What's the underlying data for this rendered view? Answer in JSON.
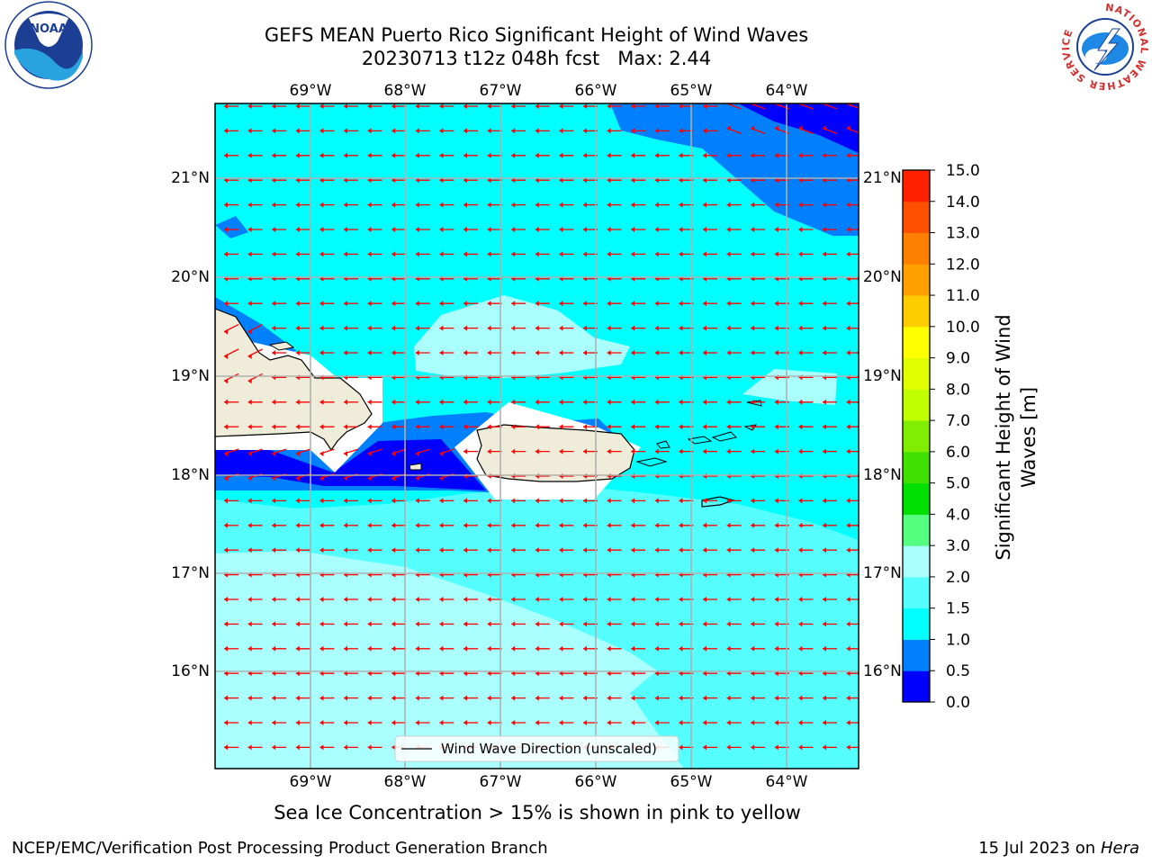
{
  "title": {
    "line1": "GEFS MEAN Puerto Rico Significant Height of Wind Waves",
    "line2": "20230713 t12z 048h fcst   Max: 2.44"
  },
  "map": {
    "lon_ticks": [
      "69°W",
      "68°W",
      "67°W",
      "66°W",
      "65°W",
      "64°W"
    ],
    "lat_ticks": [
      "21°N",
      "20°N",
      "19°N",
      "18°N",
      "17°N",
      "16°N"
    ],
    "legend_label": "Wind Wave Direction (unscaled)",
    "colors": {
      "ocean_low": "#00ffff",
      "ocean_mid": "#55ffff",
      "ocean_high": "#aaffff",
      "ocean_very_low": "#0080ff",
      "ocean_min": "#0000ff",
      "land": "#efedda",
      "arrow": "#ff0000"
    }
  },
  "colorbar": {
    "label": "Significant Height of Wind Waves [m]",
    "ticks": [
      "0.0",
      "0.5",
      "1.0",
      "1.5",
      "2.0",
      "3.0",
      "4.0",
      "5.0",
      "6.0",
      "7.0",
      "8.0",
      "9.0",
      "10.0",
      "11.0",
      "12.0",
      "13.0",
      "14.0",
      "15.0"
    ],
    "colors": [
      "#0000ff",
      "#0080ff",
      "#00ffff",
      "#55ffff",
      "#aaffff",
      "#55ff80",
      "#00e000",
      "#40e000",
      "#80ee00",
      "#c0ff00",
      "#e0ff00",
      "#ffff00",
      "#ffcc00",
      "#ffa000",
      "#ff8000",
      "#ff5000",
      "#ff2000"
    ]
  },
  "sea_ice_note": "Sea Ice Concentration > 15% is shown in pink to yellow",
  "footer": {
    "left": "NCEP/EMC/Verification Post Processing Product Generation Branch",
    "right_date": "15 Jul 2023 on ",
    "right_host": "Hera"
  },
  "logos": {
    "noaa": "NOAA",
    "nws_ring": "NATIONAL WEATHER SERVICE"
  }
}
